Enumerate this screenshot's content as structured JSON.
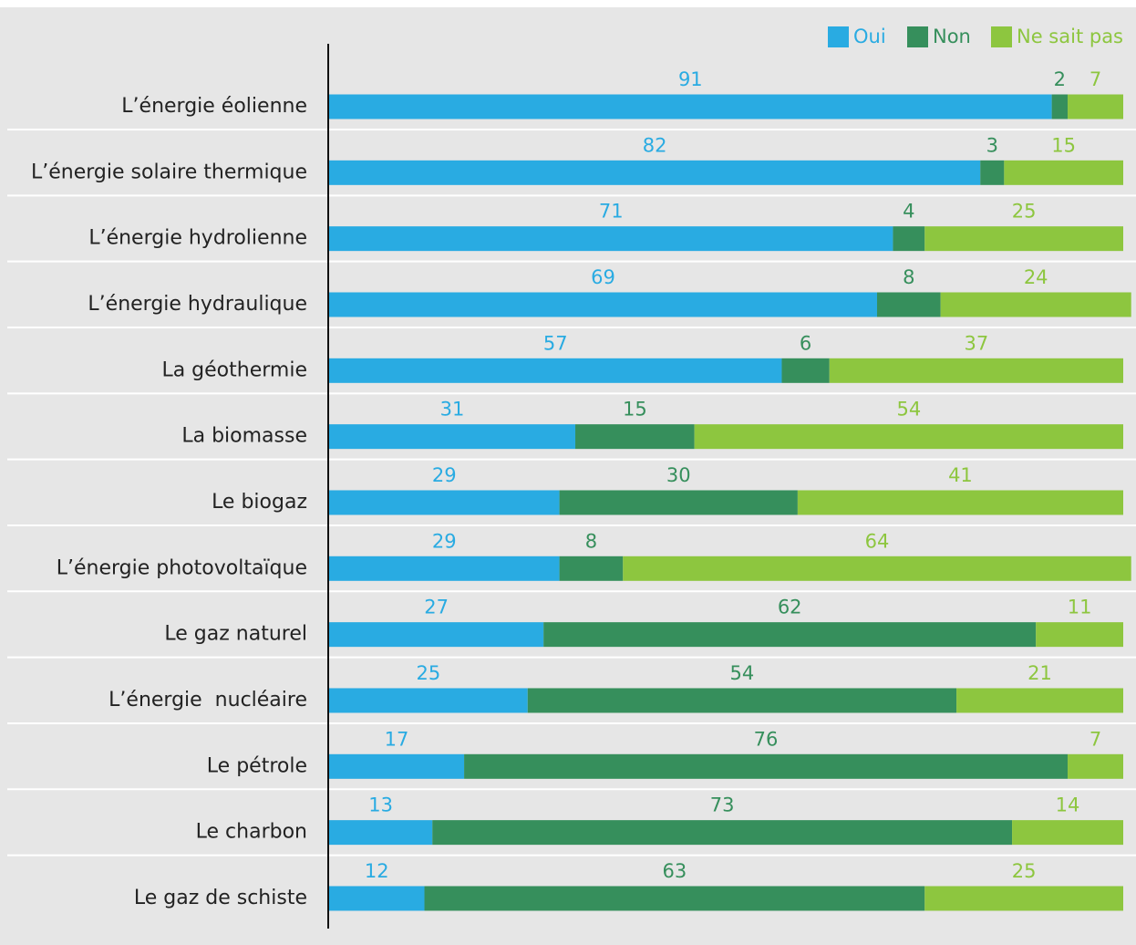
{
  "chart_data": {
    "type": "stacked-bar-horizontal",
    "categories": [
      "L’énergie éolienne",
      "L’énergie solaire thermique",
      "L’énergie hydrolienne",
      "L’énergie hydraulique",
      "La géothermie",
      "La biomasse",
      "Le biogaz",
      "L’énergie photovoltaïque",
      "Le gaz naturel",
      "L’énergie  nucléaire",
      "Le pétrole",
      "Le charbon",
      "Le gaz de schiste"
    ],
    "series": [
      {
        "name": "Oui",
        "color": "#29abe2",
        "values": [
          91,
          82,
          71,
          69,
          57,
          31,
          29,
          29,
          27,
          25,
          17,
          13,
          12
        ]
      },
      {
        "name": "Non",
        "color": "#368f5c",
        "values": [
          2,
          3,
          4,
          8,
          6,
          15,
          30,
          8,
          62,
          54,
          76,
          73,
          63
        ]
      },
      {
        "name": "Ne sait pas",
        "color": "#8dc63f",
        "values": [
          7,
          15,
          25,
          24,
          37,
          54,
          41,
          64,
          11,
          21,
          7,
          14,
          25
        ]
      }
    ],
    "xlim": [
      0,
      100
    ],
    "legend": "top-right"
  }
}
